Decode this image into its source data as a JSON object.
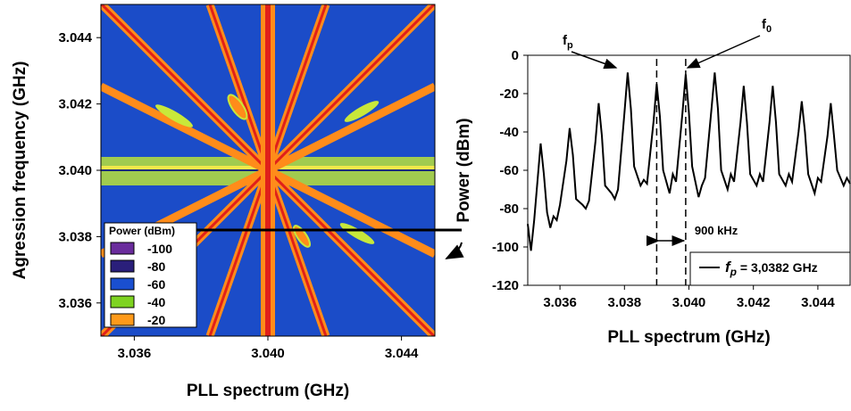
{
  "chart_data": [
    {
      "type": "heatmap",
      "xlabel": "PLL spectrum (GHz)",
      "ylabel": "Agression frequency (GHz)",
      "xlim": [
        3.035,
        3.045
      ],
      "ylim": [
        3.035,
        3.045
      ],
      "xticks": [
        {
          "value": 3.036,
          "label": "3.036"
        },
        {
          "value": 3.04,
          "label": "3.040"
        },
        {
          "value": 3.044,
          "label": "3.044"
        }
      ],
      "yticks": [
        {
          "value": 3.036,
          "label": "3.036"
        },
        {
          "value": 3.038,
          "label": "3.038"
        },
        {
          "value": 3.04,
          "label": "3.040"
        },
        {
          "value": 3.042,
          "label": "3.042"
        },
        {
          "value": 3.044,
          "label": "3.044"
        }
      ],
      "legend": {
        "title": "Power (dBm)",
        "levels": [
          -100,
          -80,
          -60,
          -40,
          -20
        ],
        "colors": [
          "#6a2c9c",
          "#2a1f7a",
          "#1a4fd0",
          "#7ed321",
          "#ff9a1a"
        ]
      },
      "cut_y": 3.0382
    },
    {
      "type": "line",
      "xlabel": "PLL spectrum (GHz)",
      "ylabel": "Power (dBm)",
      "xlim": [
        3.035,
        3.045
      ],
      "ylim": [
        -120,
        0
      ],
      "xticks": [
        {
          "value": 3.036,
          "label": "3.036"
        },
        {
          "value": 3.038,
          "label": "3.038"
        },
        {
          "value": 3.04,
          "label": "3.040"
        },
        {
          "value": 3.042,
          "label": "3.042"
        },
        {
          "value": 3.044,
          "label": "3.044"
        }
      ],
      "yticks": [
        0,
        -20,
        -40,
        -60,
        -80,
        -100,
        -120
      ],
      "x": [
        3.035,
        3.0351,
        3.0352,
        3.0353,
        3.0354,
        3.0355,
        3.0356,
        3.0357,
        3.0358,
        3.0359,
        3.036,
        3.0362,
        3.0363,
        3.0364,
        3.0365,
        3.0367,
        3.0368,
        3.0369,
        3.0371,
        3.0372,
        3.0373,
        3.0374,
        3.0376,
        3.0377,
        3.0378,
        3.038,
        3.0381,
        3.0382,
        3.0383,
        3.0385,
        3.0386,
        3.0387,
        3.0389,
        3.039,
        3.0391,
        3.0392,
        3.0394,
        3.0395,
        3.0396,
        3.0398,
        3.0399,
        3.04,
        3.0401,
        3.0403,
        3.0404,
        3.0405,
        3.0407,
        3.0408,
        3.0409,
        3.041,
        3.0412,
        3.0413,
        3.0414,
        3.0416,
        3.0417,
        3.0418,
        3.0419,
        3.0421,
        3.0422,
        3.0423,
        3.0425,
        3.0426,
        3.0427,
        3.0428,
        3.043,
        3.0431,
        3.0432,
        3.0434,
        3.0435,
        3.0436,
        3.0437,
        3.0439,
        3.044,
        3.0441,
        3.0443,
        3.0444,
        3.0445,
        3.0446,
        3.0448,
        3.0449,
        3.045
      ],
      "series": [
        {
          "color": "#000000",
          "name_parts": [
            "f",
            "p",
            " = 3,0382 GHz"
          ],
          "values": [
            -88,
            -102,
            -86,
            -66,
            -46,
            -62,
            -82,
            -90,
            -84,
            -86,
            -78,
            -55,
            -38,
            -52,
            -75,
            -78,
            -80,
            -76,
            -45,
            -25,
            -42,
            -68,
            -72,
            -75,
            -70,
            -30,
            -9,
            -28,
            -58,
            -68,
            -65,
            -67,
            -35,
            -15,
            -32,
            -60,
            -72,
            -62,
            -66,
            -30,
            -10,
            -30,
            -58,
            -74,
            -68,
            -64,
            -28,
            -9,
            -28,
            -60,
            -70,
            -62,
            -66,
            -35,
            -16,
            -35,
            -62,
            -68,
            -62,
            -66,
            -35,
            -16,
            -35,
            -62,
            -68,
            -62,
            -66,
            -40,
            -24,
            -40,
            -62,
            -72,
            -64,
            -66,
            -42,
            -25,
            -42,
            -60,
            -68,
            -64,
            -67
          ]
        }
      ],
      "markers": [
        3.039,
        3.0399
      ],
      "spacing_label": "900 kHz",
      "annotations": [
        {
          "text": "f",
          "sub": "p"
        },
        {
          "text": "f",
          "sub": "0"
        }
      ]
    }
  ]
}
